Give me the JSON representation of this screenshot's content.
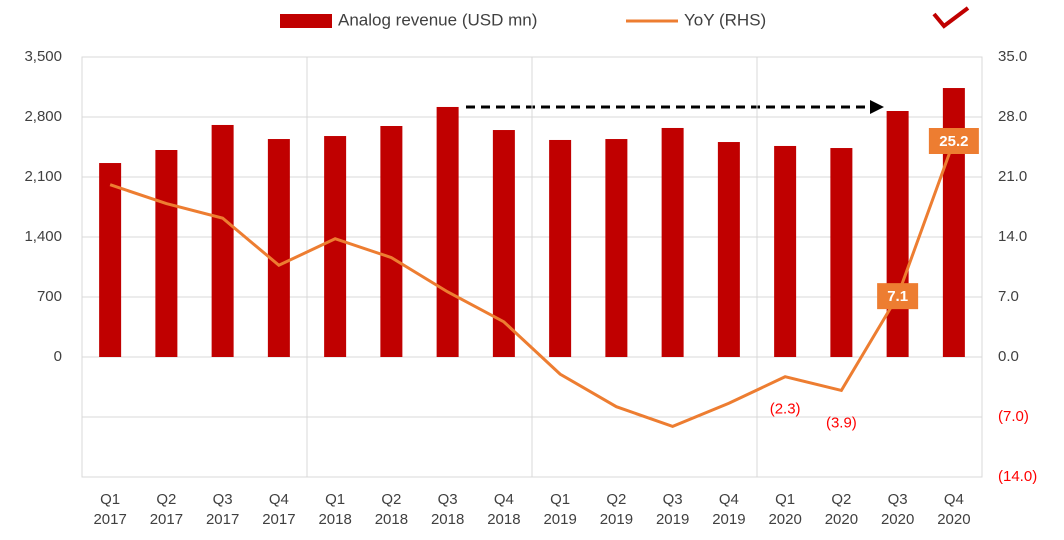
{
  "chart_data": {
    "type": "bar",
    "categories": [
      "Q1 2017",
      "Q2 2017",
      "Q3 2017",
      "Q4 2017",
      "Q1 2018",
      "Q2 2018",
      "Q3 2018",
      "Q4 2018",
      "Q1 2019",
      "Q2 2019",
      "Q3 2019",
      "Q4 2019",
      "Q1 2020",
      "Q2 2020",
      "Q3 2020",
      "Q4 2020"
    ],
    "series": [
      {
        "name": "Analog revenue (USD mn)",
        "type": "bar",
        "color": "#c00000",
        "axis": "y",
        "values": [
          2263,
          2415,
          2707,
          2543,
          2578,
          2695,
          2917,
          2648,
          2532,
          2543,
          2672,
          2508,
          2462,
          2438,
          2870,
          3138
        ]
      },
      {
        "name": "YoY (RHS)",
        "type": "line",
        "color": "#ed7d31",
        "axis": "y2",
        "values": [
          20.1,
          17.9,
          16.2,
          10.7,
          13.8,
          11.6,
          7.6,
          4.1,
          -2.0,
          -5.8,
          -8.1,
          -5.4,
          -2.3,
          -3.9,
          7.1,
          25.2
        ],
        "value_labels": [
          null,
          null,
          null,
          null,
          null,
          null,
          null,
          null,
          null,
          null,
          null,
          null,
          "(2.3)",
          "(3.9)",
          "7.1",
          "25.2"
        ]
      }
    ],
    "ylim": [
      -1400,
      3500
    ],
    "yticks": [
      0,
      700,
      {
        "value": 1400,
        "label": "1,400"
      },
      {
        "value": 2100,
        "label": "2,100"
      },
      {
        "value": 2800,
        "label": "2,800"
      },
      {
        "value": 3500,
        "label": "3,500"
      }
    ],
    "y2lim": [
      -14,
      35
    ],
    "y2ticks": [
      {
        "value": -14,
        "label": "(14.0)"
      },
      {
        "value": -7,
        "label": "(7.0)"
      },
      {
        "value": 0,
        "label": "0.0"
      },
      {
        "value": 7,
        "label": "7.0"
      },
      {
        "value": 14,
        "label": "14.0"
      },
      {
        "value": 21,
        "label": "21.0"
      },
      {
        "value": 28,
        "label": "28.0"
      },
      {
        "value": 35,
        "label": "35.0"
      }
    ],
    "grid": true,
    "legend": "top"
  }
}
